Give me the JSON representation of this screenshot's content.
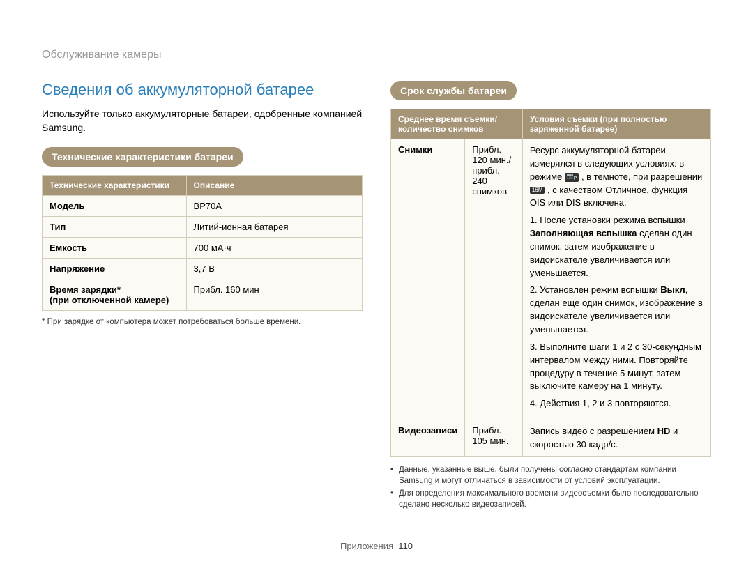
{
  "header": "Обслуживание камеры",
  "section_title": "Сведения об аккумуляторной батарее",
  "intro": "Используйте только аккумуляторные батареи, одобренные компанией Samsung.",
  "spec_pill": "Технические характеристики батареи",
  "spec_table": {
    "headers": [
      "Технические характеристики",
      "Описание"
    ],
    "rows": [
      [
        "Модель",
        "BP70A"
      ],
      [
        "Тип",
        "Литий-ионная батарея"
      ],
      [
        "Емкость",
        "700 мА·ч"
      ],
      [
        "Напряжение",
        "3,7 В"
      ],
      [
        "Время зарядки*\n(при отключенной камере)",
        "Прибл. 160 мин"
      ]
    ]
  },
  "spec_footnote": "* При зарядке от компьютера может потребоваться больше времени.",
  "life_pill": "Срок службы батареи",
  "life_table": {
    "headers": [
      "Среднее время съемки/ количество снимков",
      "Условия съемки (при полностью заряженной батарее)"
    ],
    "row1_label": "Снимки",
    "row1_mid": "Прибл. 120 мин./ прибл. 240 снимков",
    "row1_cond_intro_a": "Ресурс аккумуляторной батареи измерялся в следующих условиях: в режиме ",
    "row1_cond_intro_b": ", в темноте, при разрешении ",
    "row1_cond_intro_c": ", с качеством Отличное, функция OIS или DIS включена.",
    "row1_step1_a": "1. После установки режима вспышки ",
    "row1_step1_bold": "Заполняющая вспышка",
    "row1_step1_b": " сделан один снимок, затем изображение в видоискателе увеличивается или уменьшается.",
    "row1_step2_a": "2. Установлен режим вспышки ",
    "row1_step2_bold": "Выкл",
    "row1_step2_b": ", сделан еще один снимок, изображение в видоискателе увеличивается или уменьшается.",
    "row1_step3": "3. Выполните шаги 1 и 2 с 30-секундным интервалом между ними. Повторяйте процедуру в течение 5 минут, затем выключите камеру на 1 минуту.",
    "row1_step4": "4. Действия 1, 2 и 3 повторяются.",
    "row2_label": "Видеозаписи",
    "row2_mid": "Прибл. 105 мин.",
    "row2_cond_a": "Запись видео с разрешением ",
    "row2_cond_hd": "HD",
    "row2_cond_b": " и скоростью 30 кадр/с."
  },
  "bullet1": "Данные, указанные выше, были получены согласно стандартам компании Samsung и могут отличаться в зависимости от условий эксплуатации.",
  "bullet2": "Для определения максимального времени видеосъемки было последовательно сделано несколько видеозаписей.",
  "page_label": "Приложения",
  "page_num": "110",
  "icon_cam": "⬛",
  "icon_res": "16M"
}
